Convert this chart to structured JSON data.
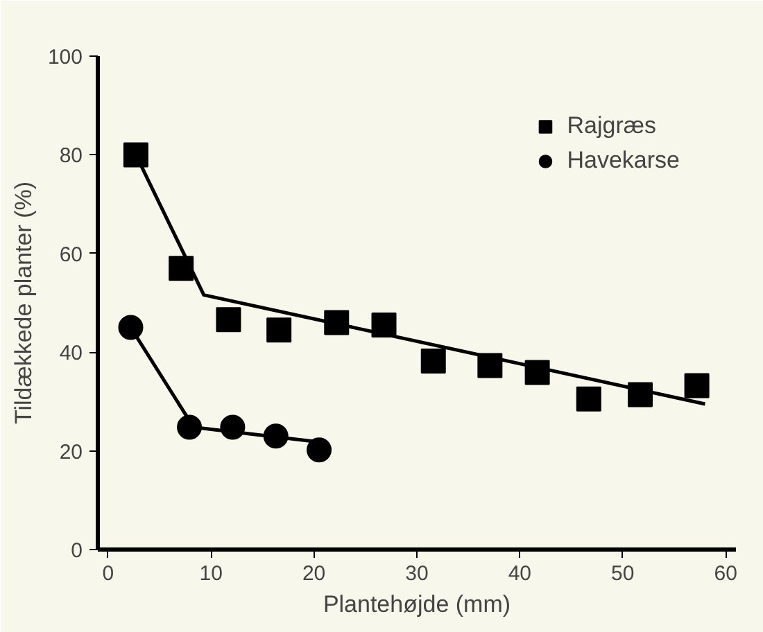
{
  "chart_data": {
    "type": "scatter",
    "xlabel": "Plantehøjde (mm)",
    "ylabel": "Tildækkede planter (%)",
    "xlim": [
      -1,
      61
    ],
    "ylim": [
      0,
      100
    ],
    "xticks": [
      0,
      10,
      20,
      30,
      40,
      50,
      60
    ],
    "yticks": [
      0,
      20,
      40,
      60,
      80,
      100
    ],
    "grid": false,
    "legend": "top right",
    "series": [
      {
        "name": "Rajgræs",
        "color": "#000000",
        "marker": "square",
        "x": [
          2.7,
          7.1,
          11.7,
          16.6,
          22.2,
          26.8,
          31.6,
          37.1,
          41.7,
          46.7,
          51.7,
          57.2
        ],
        "values": [
          80,
          57,
          46.6,
          44.5,
          46,
          45.5,
          38.2,
          37.3,
          35.9,
          30.5,
          31.4,
          33.2
        ]
      },
      {
        "name": "Havekarse",
        "color": "#000000",
        "marker": "circle",
        "x": [
          2.2,
          7.9,
          12.1,
          16.3,
          20.5
        ],
        "values": [
          45,
          24.8,
          24.8,
          23,
          20.2
        ]
      },
      {
        "type": "line",
        "color": "#000000",
        "line_style": "solid",
        "x": [
          2.7,
          9.3,
          58
        ],
        "values": [
          80,
          51.6,
          29.5
        ]
      },
      {
        "type": "line",
        "color": "#000000",
        "line_style": "solid",
        "x": [
          2.2,
          8.3,
          21.3
        ],
        "values": [
          45,
          24.8,
          21.6
        ]
      }
    ]
  }
}
